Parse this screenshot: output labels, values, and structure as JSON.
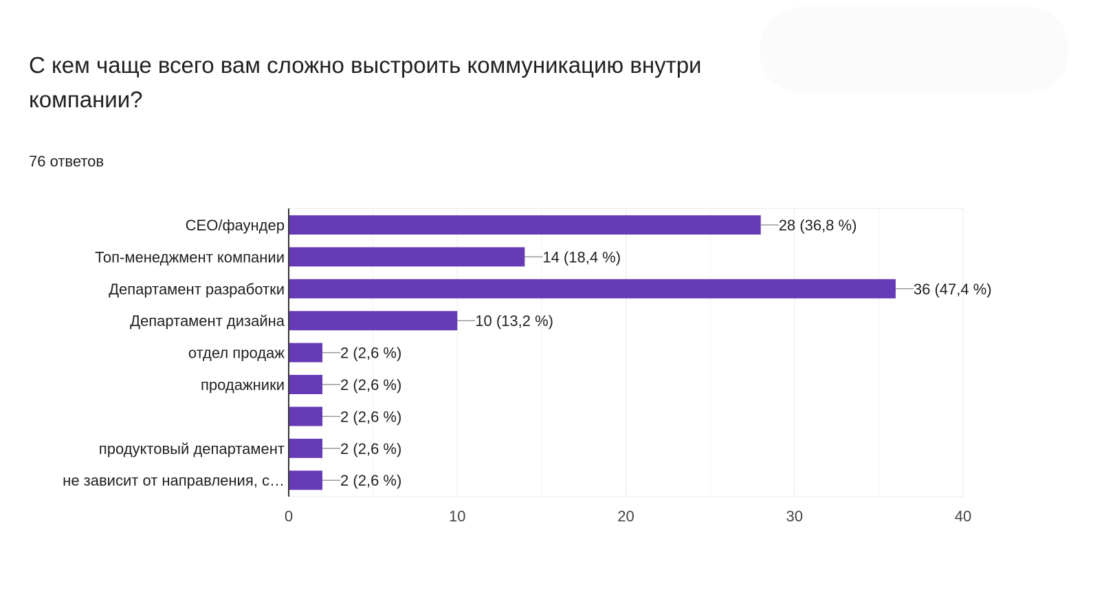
{
  "question": {
    "title": "С кем чаще всего вам сложно выстроить коммуникацию внутри компании?",
    "responses": "76 ответов"
  },
  "colors": {
    "bar": "#673ab7",
    "grid": "#e8e8e8",
    "axis": "#333333",
    "leader": "#999999"
  },
  "chart_data": {
    "type": "bar",
    "orientation": "horizontal",
    "categories": [
      "CEO/фаундер",
      "Топ-менеджмент компании",
      "Департамент разработки",
      "Департамент дизайна",
      "отдел продаж",
      "продажники",
      "",
      "продуктовый департамент",
      "не зависит от направления, с…"
    ],
    "values": [
      28,
      14,
      36,
      10,
      2,
      2,
      2,
      2,
      2
    ],
    "value_labels": [
      "28 (36,8 %)",
      "14 (18,4 %)",
      "36 (47,4 %)",
      "10 (13,2 %)",
      "2 (2,6 %)",
      "2 (2,6 %)",
      "2 (2,6 %)",
      "2 (2,6 %)",
      "2 (2,6 %)"
    ],
    "xlim": [
      0,
      40
    ],
    "xticks": [
      0,
      10,
      20,
      30,
      40
    ],
    "xtick_labels": [
      "0",
      "10",
      "20",
      "30",
      "40"
    ],
    "minor_gridlines": [
      5,
      15,
      25,
      35
    ],
    "grid": true,
    "legend": "none",
    "xlabel": "",
    "ylabel": ""
  }
}
